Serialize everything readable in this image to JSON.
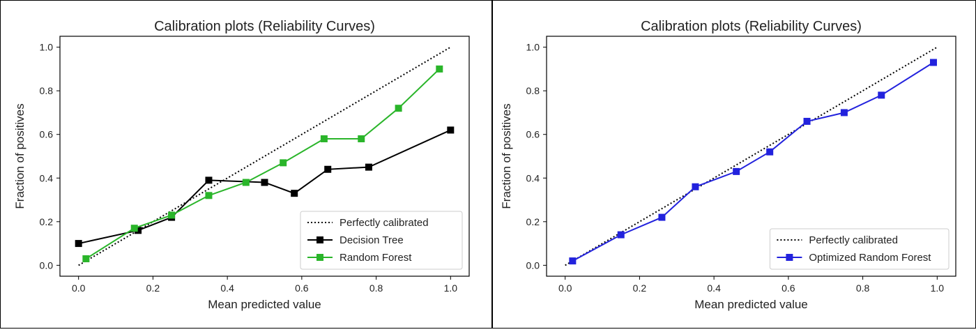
{
  "chart_data": [
    {
      "type": "line",
      "title": "Calibration plots (Reliability Curves)",
      "xlabel": "Mean predicted value",
      "ylabel": "Fraction of positives",
      "xlim": [
        -0.05,
        1.05
      ],
      "ylim": [
        -0.05,
        1.05
      ],
      "xticks": [
        "0.0",
        "0.2",
        "0.4",
        "0.6",
        "0.8",
        "1.0"
      ],
      "yticks": [
        "0.0",
        "0.2",
        "0.4",
        "0.6",
        "0.8",
        "1.0"
      ],
      "grid": false,
      "legend_position": "bottom-right",
      "series": [
        {
          "name": "Perfectly calibrated",
          "style": "dotted",
          "color": "#000000",
          "marker": "none",
          "x": [
            0,
            1
          ],
          "y": [
            0,
            1
          ]
        },
        {
          "name": "Decision Tree",
          "style": "solid",
          "color": "#000000",
          "marker": "square",
          "x": [
            0.0,
            0.16,
            0.25,
            0.35,
            0.5,
            0.58,
            0.67,
            0.78,
            1.0
          ],
          "y": [
            0.1,
            0.16,
            0.22,
            0.39,
            0.38,
            0.33,
            0.44,
            0.45,
            0.62
          ]
        },
        {
          "name": "Random Forest",
          "style": "solid",
          "color": "#2ab52a",
          "marker": "square",
          "x": [
            0.02,
            0.15,
            0.25,
            0.35,
            0.45,
            0.55,
            0.66,
            0.76,
            0.86,
            0.97
          ],
          "y": [
            0.03,
            0.17,
            0.23,
            0.32,
            0.38,
            0.47,
            0.58,
            0.58,
            0.72,
            0.9
          ]
        }
      ]
    },
    {
      "type": "line",
      "title": "Calibration plots (Reliability Curves)",
      "xlabel": "Mean predicted value",
      "ylabel": "Fraction of positives",
      "xlim": [
        -0.05,
        1.05
      ],
      "ylim": [
        -0.05,
        1.05
      ],
      "xticks": [
        "0.0",
        "0.2",
        "0.4",
        "0.6",
        "0.8",
        "1.0"
      ],
      "yticks": [
        "0.0",
        "0.2",
        "0.4",
        "0.6",
        "0.8",
        "1.0"
      ],
      "grid": false,
      "legend_position": "bottom-right",
      "series": [
        {
          "name": "Perfectly calibrated",
          "style": "dotted",
          "color": "#000000",
          "marker": "none",
          "x": [
            0,
            1
          ],
          "y": [
            0,
            1
          ]
        },
        {
          "name": "Optimized Random Forest",
          "style": "solid",
          "color": "#2222dd",
          "marker": "square",
          "x": [
            0.02,
            0.15,
            0.26,
            0.35,
            0.46,
            0.55,
            0.65,
            0.75,
            0.85,
            0.99
          ],
          "y": [
            0.02,
            0.14,
            0.22,
            0.36,
            0.43,
            0.52,
            0.66,
            0.7,
            0.78,
            0.93
          ]
        }
      ]
    }
  ]
}
